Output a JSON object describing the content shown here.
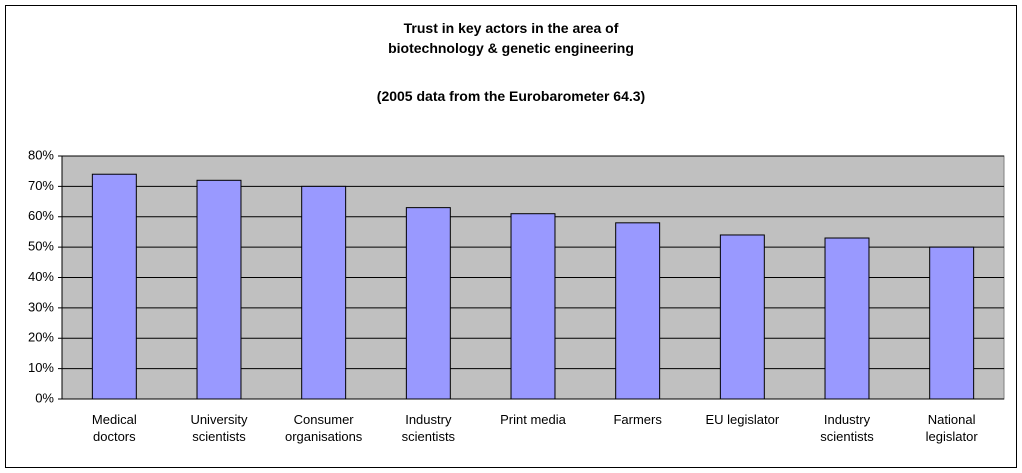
{
  "chart_data": {
    "type": "bar",
    "title": "Trust in key actors in the area of\nbiotechnology & genetic engineering",
    "subtitle": "(2005 data from the Eurobarometer 64.3)",
    "categories": [
      "Medical\ndoctors",
      "University\nscientists",
      "Consumer\norganisations",
      "Industry\nscientists",
      "Print media",
      "Farmers",
      "EU legislator",
      "Industry\nscientists",
      "National\nlegislator"
    ],
    "values": [
      74,
      72,
      70,
      63,
      61,
      58,
      54,
      53,
      50
    ],
    "color": "#9999ff",
    "ylim": [
      0,
      80
    ],
    "yticks": [
      {
        "value": 0,
        "label": "0%"
      },
      {
        "value": 10,
        "label": "10%"
      },
      {
        "value": 20,
        "label": "20%"
      },
      {
        "value": 30,
        "label": "30%"
      },
      {
        "value": 40,
        "label": "40%"
      },
      {
        "value": 50,
        "label": "50%"
      },
      {
        "value": 60,
        "label": "60%"
      },
      {
        "value": 70,
        "label": "70%"
      },
      {
        "value": 80,
        "label": "80%"
      }
    ],
    "grid": true
  }
}
